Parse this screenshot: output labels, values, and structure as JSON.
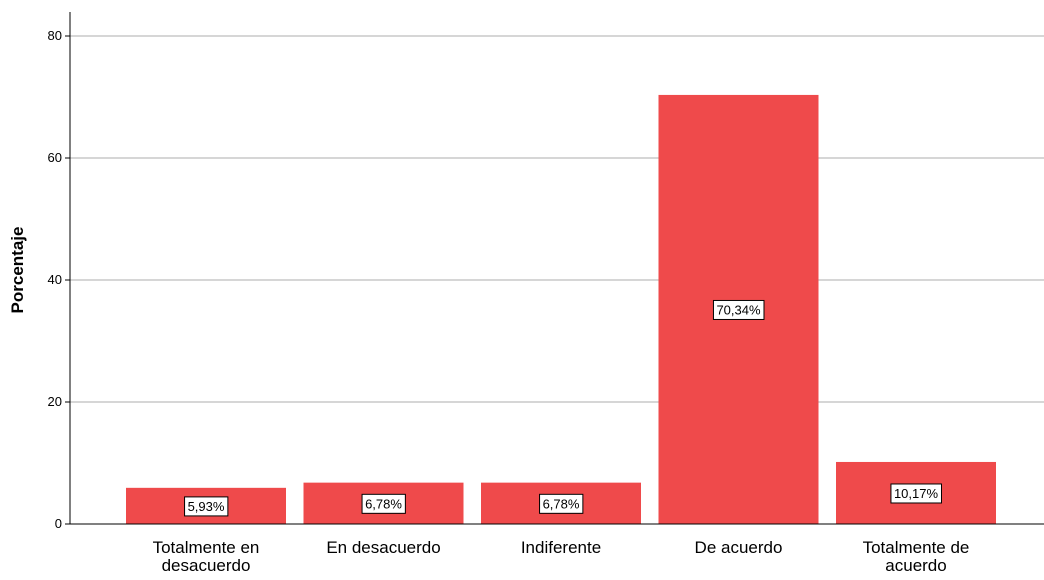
{
  "chart_data": {
    "type": "bar",
    "title": "",
    "xlabel": "",
    "ylabel": "Porcentaje",
    "ylim": [
      0,
      85
    ],
    "yticks": [
      0,
      20,
      40,
      60,
      80
    ],
    "grid": true,
    "categories": [
      [
        "Totalmente en",
        "desacuerdo"
      ],
      [
        "En desacuerdo"
      ],
      [
        "Indiferente"
      ],
      [
        "De acuerdo"
      ],
      [
        "Totalmente de",
        "acuerdo"
      ]
    ],
    "values": [
      5.93,
      6.78,
      6.78,
      70.34,
      10.17
    ],
    "data_labels": [
      "5,93%",
      "6,78%",
      "6,78%",
      "70,34%",
      "10,17%"
    ],
    "bar_color": "#ef4a4b",
    "grid_color": "#c8c8c8"
  }
}
